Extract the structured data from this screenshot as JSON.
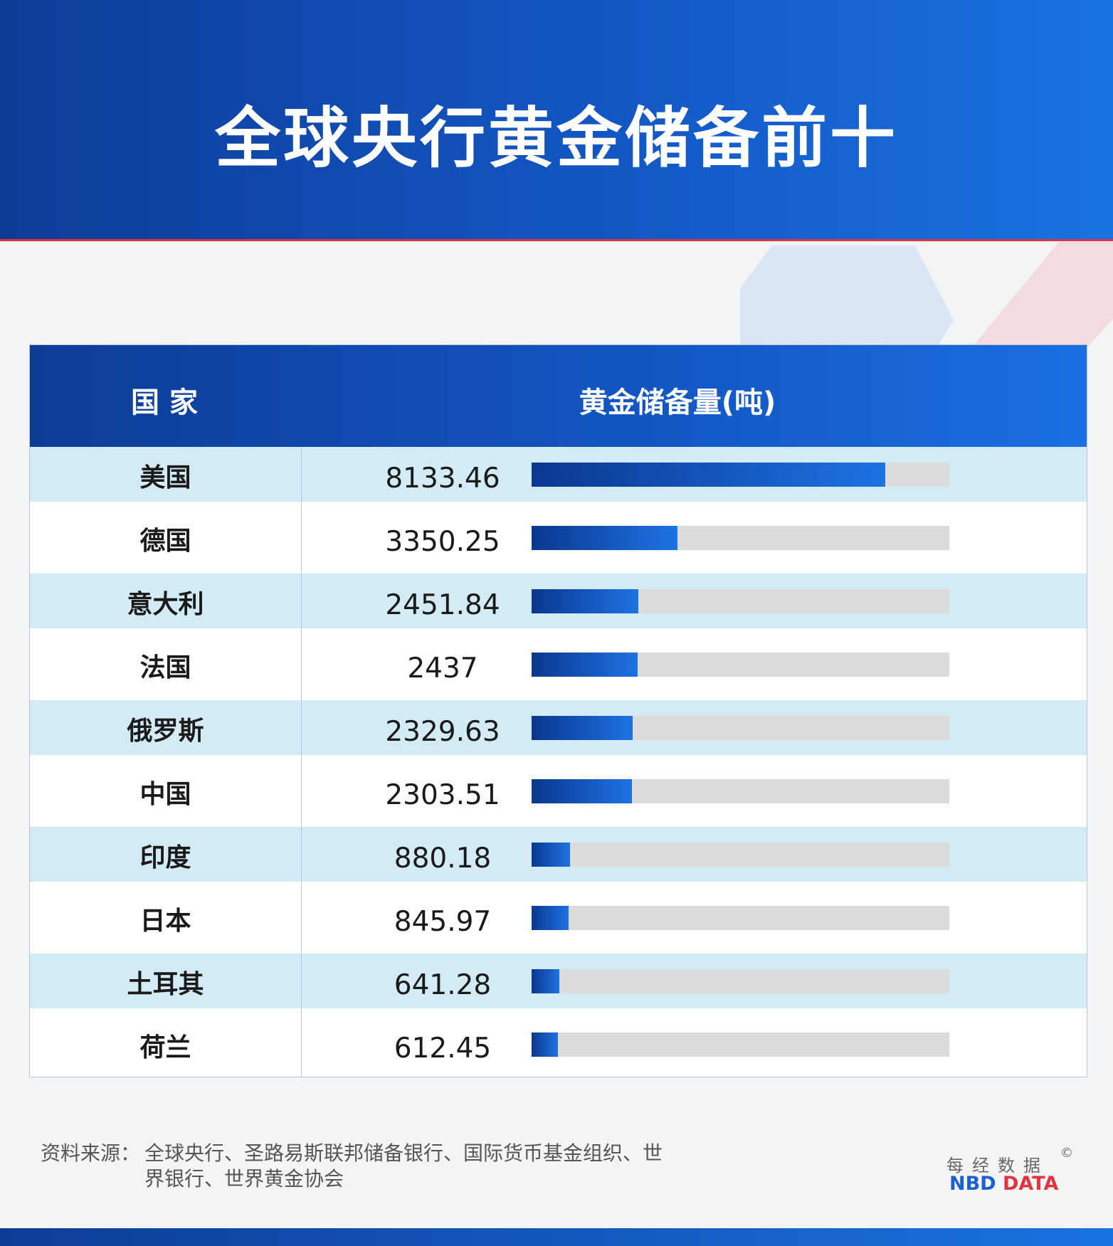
{
  "title": "全球央行黄金储备前十",
  "table": {
    "col_country": "国家",
    "col_value": "黄金储备量(吨)"
  },
  "chart_data": {
    "type": "bar",
    "title": "全球央行黄金储备前十",
    "xlabel": "国家",
    "ylabel": "黄金储备量(吨)",
    "categories": [
      "美国",
      "德国",
      "意大利",
      "法国",
      "俄罗斯",
      "中国",
      "印度",
      "日本",
      "土耳其",
      "荷兰"
    ],
    "values_text": [
      "8133.46",
      "3350.25",
      "2451.84",
      "2437",
      "2329.63",
      "2303.51",
      "880.18",
      "845.97",
      "641.28",
      "612.45"
    ],
    "values": [
      8133.46,
      3350.25,
      2451.84,
      2437,
      2329.63,
      2303.51,
      880.18,
      845.97,
      641.28,
      612.45
    ],
    "max_scale": 9600
  },
  "source": {
    "label": "资料来源：",
    "text": "全球央行、圣路易斯联邦储备银行、国际货币基金组织、世界银行、世界黄金协会"
  },
  "brand": {
    "cn": "每经数据",
    "copyright": "©",
    "en_nbd": "NBD",
    "en_data": "DATA"
  },
  "colors": {
    "header": "#1357c4",
    "bar": "#1d73e2",
    "track": "#dcdcdc",
    "stripe": "#d3ebf5",
    "accent_red": "#e2343f"
  }
}
